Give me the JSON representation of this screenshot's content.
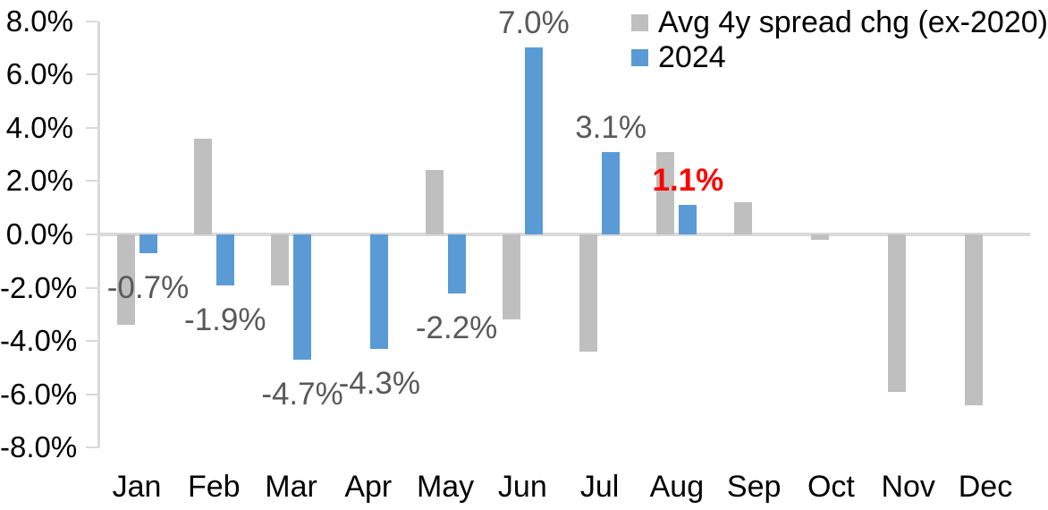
{
  "chart_data": {
    "type": "bar",
    "categories": [
      "Jan",
      "Feb",
      "Mar",
      "Apr",
      "May",
      "Jun",
      "Jul",
      "Aug",
      "Sep",
      "Oct",
      "Nov",
      "Dec"
    ],
    "series": [
      {
        "key": "avg",
        "name": "Avg 4y spread chg (ex-2020)",
        "color": "#bfbfbf",
        "values": [
          -3.4,
          3.6,
          -1.9,
          0.0,
          2.4,
          -3.2,
          -4.4,
          3.1,
          1.2,
          -0.2,
          -5.9,
          -6.4
        ]
      },
      {
        "key": "2024",
        "name": "2024",
        "color": "#5b9bd5",
        "values": [
          -0.7,
          -1.9,
          -4.7,
          -4.3,
          -2.2,
          7.0,
          3.1,
          1.1,
          null,
          null,
          null,
          null
        ]
      }
    ],
    "data_labels": [
      {
        "category_index": 0,
        "series": "2024",
        "text": "-0.7%",
        "color": "#595959",
        "bold": false
      },
      {
        "category_index": 1,
        "series": "2024",
        "text": "-1.9%",
        "color": "#595959",
        "bold": false
      },
      {
        "category_index": 2,
        "series": "2024",
        "text": "-4.7%",
        "color": "#595959",
        "bold": false
      },
      {
        "category_index": 3,
        "series": "2024",
        "text": "-4.3%",
        "color": "#595959",
        "bold": false
      },
      {
        "category_index": 4,
        "series": "2024",
        "text": "-2.2%",
        "color": "#595959",
        "bold": false
      },
      {
        "category_index": 5,
        "series": "2024",
        "text": "7.0%",
        "color": "#595959",
        "bold": false
      },
      {
        "category_index": 6,
        "series": "2024",
        "text": "3.1%",
        "color": "#595959",
        "bold": false
      },
      {
        "category_index": 7,
        "series": "2024",
        "text": "1.1%",
        "color": "#ff0000",
        "bold": true
      }
    ],
    "y_axis": {
      "unit": "%",
      "min": -8,
      "max": 8,
      "tick_values": [
        8,
        6,
        4,
        2,
        0,
        -2,
        -4,
        -6,
        -8
      ],
      "tick_labels": [
        "8.0%",
        "6.0%",
        "4.0%",
        "2.0%",
        "0.0%",
        "-2.0%",
        "-4.0%",
        "-6.0%",
        "-8.0%"
      ]
    },
    "legend": {
      "position": "top-right",
      "entries": [
        {
          "label": "Avg 4y spread chg (ex-2020)",
          "color": "#bfbfbf"
        },
        {
          "label": "2024",
          "color": "#5b9bd5"
        }
      ]
    },
    "grid": false,
    "colors": {
      "axis_line": "#d9d9d9",
      "axis_text": "#000000",
      "data_label_default": "#595959",
      "data_label_highlight": "#ff0000"
    }
  }
}
